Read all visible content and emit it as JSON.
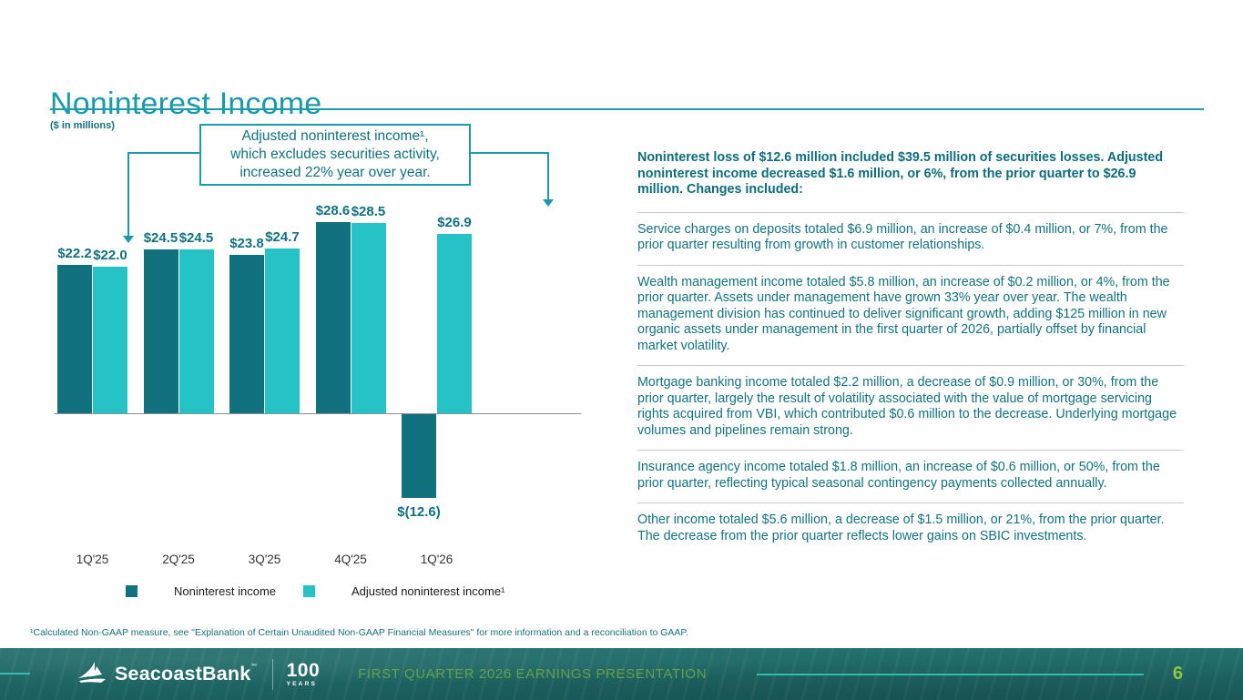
{
  "slide": {
    "title": "Noninterest Income",
    "units_label": "($ in millions)",
    "footnote": "¹Calculated Non-GAAP measure, see \"Explanation of Certain Unaudited Non-GAAP Financial Measures\" for more information and a reconciliation to GAAP."
  },
  "callout": {
    "lines": [
      "Adjusted noninterest income¹,",
      "which excludes securities activity,",
      "increased 22% year over year."
    ]
  },
  "chart_data": {
    "type": "bar",
    "title": "",
    "xlabel": "",
    "ylabel": "($ in millions)",
    "categories": [
      "1Q'25",
      "2Q'25",
      "3Q'25",
      "4Q'25",
      "1Q'26"
    ],
    "series": [
      {
        "name": "Noninterest income",
        "color": "#11717f",
        "values": [
          22.2,
          24.5,
          23.8,
          28.6,
          -12.6
        ],
        "labels": [
          "$22.2",
          "$24.5",
          "$23.8",
          "$28.6",
          "$(12.6)"
        ]
      },
      {
        "name": "Adjusted noninterest income¹",
        "color": "#25c3c6",
        "values": [
          22.0,
          24.5,
          24.7,
          28.5,
          26.9
        ],
        "labels": [
          "$22.0",
          "$24.5",
          "$24.7",
          "$28.5",
          "$26.9"
        ]
      }
    ],
    "ylim": [
      -15,
      30
    ],
    "grid": false,
    "legend_position": "bottom"
  },
  "commentary": {
    "heading": "Noninterest loss of $12.6 million included $39.5 million of securities losses. Adjusted noninterest income decreased $1.6 million, or 6%, from the prior quarter to $26.9 million. Changes included:",
    "items": [
      "Service charges on deposits totaled $6.9 million, an increase of $0.4 million, or 7%, from the prior quarter resulting from growth in customer relationships.",
      "Wealth management income totaled $5.8 million, an increase of $0.2 million, or 4%, from the prior quarter. Assets under management have grown 33% year over year. The wealth management division has continued to deliver significant growth, adding $125 million in new organic assets under management in the first quarter of 2026, partially offset by financial market volatility.",
      "Mortgage banking income totaled $2.2 million, a decrease of $0.9 million, or 30%, from the prior quarter, largely the result of volatility associated with the value of mortgage servicing rights acquired from VBI, which contributed $0.6 million to the decrease. Underlying mortgage volumes and pipelines remain strong.",
      "Insurance agency income totaled $1.8 million, an increase of $0.6 million, or 50%, from the prior quarter, reflecting typical seasonal contingency payments collected annually.",
      "Other income totaled $5.6 million, a decrease of $1.5 million, or 21%, from the prior quarter. The decrease from the prior quarter reflects lower gains on SBIC investments."
    ]
  },
  "footer": {
    "logo_text": "SeacoastBank",
    "logo_mark": "™",
    "years_number": "100",
    "years_label": "YEARS",
    "presentation_title": "FIRST QUARTER 2026 EARNINGS PRESENTATION",
    "page_number": "6"
  },
  "colors": {
    "title_teal": "#1b9aa9",
    "dark_teal_bar": "#11717f",
    "turquoise_bar": "#25c3c6",
    "body_text_teal": "#13727f",
    "footer_background": "#1e6a66",
    "footer_accent_line": "#2fbdb0",
    "page_number_green": "#8dc63f",
    "presentation_title_green": "#66a04e",
    "divider_gray": "#c8c8c8"
  }
}
